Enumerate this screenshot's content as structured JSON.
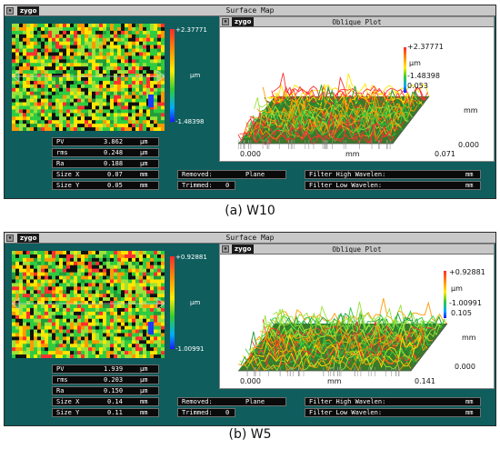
{
  "window_title": "Surface Map",
  "logo_text": "zygo",
  "panels": [
    {
      "caption": "(a) W10",
      "map": {
        "max_label": "+2.37771",
        "unit": "µm",
        "min_label": "-1.48398"
      },
      "oblique": {
        "title": "Oblique Plot",
        "max_label": "+2.37771",
        "unit": "µm",
        "min_label": "-1.48398",
        "y_extent": "0.053",
        "y_unit": "mm",
        "y_origin": "0.000",
        "x_origin": "0.000",
        "x_unit": "mm",
        "x_extent": "0.071"
      },
      "stats": [
        {
          "name": "PV",
          "value": "3.862",
          "unit": "µm"
        },
        {
          "name": "rms",
          "value": "0.248",
          "unit": "µm"
        },
        {
          "name": "Ra",
          "value": "0.188",
          "unit": "µm"
        },
        {
          "name": "Size X",
          "value": "0.07",
          "unit": "mm"
        },
        {
          "name": "Size Y",
          "value": "0.05",
          "unit": "mm"
        }
      ],
      "removed_label": "Removed:",
      "removed_value": "Plane",
      "trimmed_label": "Trimmed:",
      "trimmed_value": "0",
      "filter_high_label": "Filter High Wavelen:",
      "filter_high_unit": "mm",
      "filter_low_label": "Filter Low  Wavelen:",
      "filter_low_unit": "mm"
    },
    {
      "caption": "(b) W5",
      "map": {
        "max_label": "+0.92881",
        "unit": "µm",
        "min_label": "-1.00991"
      },
      "oblique": {
        "title": "Oblique Plot",
        "max_label": "+0.92881",
        "unit": "µm",
        "min_label": "-1.00991",
        "y_extent": "0.105",
        "y_unit": "mm",
        "y_origin": "0.000",
        "x_origin": "0.000",
        "x_unit": "mm",
        "x_extent": "0.141"
      },
      "stats": [
        {
          "name": "PV",
          "value": "1.939",
          "unit": "µm"
        },
        {
          "name": "rms",
          "value": "0.203",
          "unit": "µm"
        },
        {
          "name": "Ra",
          "value": "0.150",
          "unit": "µm"
        },
        {
          "name": "Size X",
          "value": "0.14",
          "unit": "mm"
        },
        {
          "name": "Size Y",
          "value": "0.11",
          "unit": "mm"
        }
      ],
      "removed_label": "Removed:",
      "removed_value": "Plane",
      "trimmed_label": "Trimmed:",
      "trimmed_value": "0",
      "filter_high_label": "Filter High Wavelen:",
      "filter_high_unit": "mm",
      "filter_low_label": "Filter Low  Wavelen:",
      "filter_low_unit": "mm"
    }
  ],
  "colors": {
    "panel_bg": "#0f5d5d",
    "titlebar_bg": "#c8c8c8",
    "field_bg": "#0a0a0a",
    "scale_colors": [
      "#ff2a2a",
      "#ff9900",
      "#ffee00",
      "#33cc33",
      "#00aaff",
      "#1a1aff"
    ]
  },
  "icons": {
    "window_button": "window-menu-icon"
  }
}
